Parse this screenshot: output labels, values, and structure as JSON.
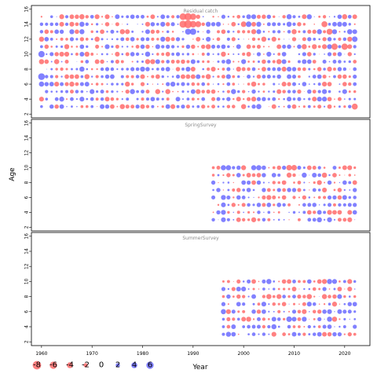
{
  "chart_data": {
    "type": "scatter",
    "subtype": "bubble-residuals",
    "xlabel": "Year",
    "ylabel": "Age",
    "xlim": [
      1958,
      2025
    ],
    "ylim": [
      1.5,
      16.5
    ],
    "x_ticks": [
      1960,
      1970,
      1980,
      1990,
      2000,
      2010,
      2020
    ],
    "y_ticks": [
      2,
      4,
      6,
      8,
      10,
      12,
      14,
      16
    ],
    "colors": {
      "positive": "#6b6bff",
      "negative": "#ff6b6b"
    },
    "legend": {
      "placement": "bottom-left",
      "values": [
        -8,
        -6,
        -4,
        -2,
        0,
        2,
        4,
        6
      ],
      "labels": [
        "-8",
        "-6",
        "-4",
        "-2",
        "0",
        "2",
        "4",
        "6"
      ]
    },
    "panels": [
      {
        "title": "Residual catch",
        "years": [
          1960,
          2022
        ],
        "ages": [
          3,
          15
        ],
        "highlights": [
          {
            "year": 1988,
            "age": 15,
            "value": -5.0
          },
          {
            "year": 1989,
            "age": 15,
            "value": -6.0
          },
          {
            "year": 1990,
            "age": 15,
            "value": -4.5
          },
          {
            "year": 1988,
            "age": 14,
            "value": -5.5
          },
          {
            "year": 1989,
            "age": 14,
            "value": -7.0
          },
          {
            "year": 1990,
            "age": 14,
            "value": -5.0
          },
          {
            "year": 1991,
            "age": 14,
            "value": -4.0
          },
          {
            "year": 1989,
            "age": 13,
            "value": 4.0
          },
          {
            "year": 1990,
            "age": 13,
            "value": 4.5
          },
          {
            "year": 1960,
            "age": 10,
            "value": 4.5
          },
          {
            "year": 1960,
            "age": 7,
            "value": 5.0
          },
          {
            "year": 1960,
            "age": 6,
            "value": 3.0
          },
          {
            "year": 2016,
            "age": 14,
            "value": -4.0
          },
          {
            "year": 2017,
            "age": 13,
            "value": -4.0
          },
          {
            "year": 2018,
            "age": 11,
            "value": -4.5
          },
          {
            "year": 2020,
            "age": 11,
            "value": -4.5
          },
          {
            "year": 2022,
            "age": 3,
            "value": -4.0
          },
          {
            "year": 2000,
            "age": 14,
            "value": -3.5
          },
          {
            "year": 2001,
            "age": 14,
            "value": 3.5
          },
          {
            "year": 2022,
            "age": 12,
            "value": 3.5
          },
          {
            "year": 2021,
            "age": 13,
            "value": 3.0
          }
        ]
      },
      {
        "title": "SpringSurvey",
        "years": [
          1994,
          2022
        ],
        "ages": [
          3,
          10
        ],
        "highlights": [
          {
            "year": 2009,
            "age": 10,
            "value": -3.5
          },
          {
            "year": 2010,
            "age": 10,
            "value": -3.5
          },
          {
            "year": 1996,
            "age": 10,
            "value": 3.0
          },
          {
            "year": 2003,
            "age": 10,
            "value": 3.0
          }
        ]
      },
      {
        "title": "SummerSurvey",
        "years": [
          1996,
          2022
        ],
        "ages": [
          3,
          10
        ],
        "highlights": [
          {
            "year": 2009,
            "age": 5,
            "value": 3.5
          },
          {
            "year": 2005,
            "age": 10,
            "value": 3.0
          },
          {
            "year": 2017,
            "age": 10,
            "value": 3.0
          }
        ]
      }
    ]
  }
}
